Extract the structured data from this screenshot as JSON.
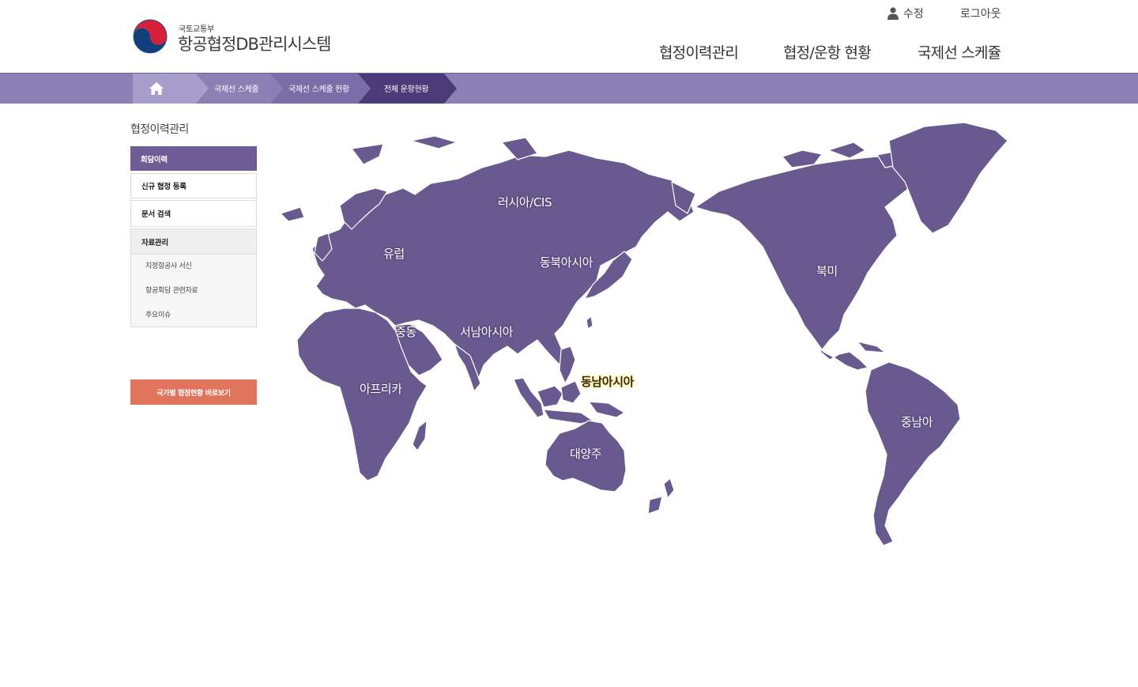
{
  "header": {
    "ministry": "국토교통부",
    "system_title": "항공협정DB관리시스템",
    "util": {
      "edit": "수정",
      "logout": "로그아웃"
    },
    "nav": [
      "협정이력관리",
      "협정/운항 현황",
      "국제선 스케쥴"
    ]
  },
  "breadcrumb": {
    "items": [
      "국제선 스케줄",
      "국제선 스케줄 현황",
      "전체 운항현황"
    ]
  },
  "sidebar": {
    "title": "협정이력관리",
    "items": [
      "회담이력",
      "신규 협정 등록",
      "문서 검색",
      "자료관리"
    ],
    "subitems": [
      "지정항공사 서신",
      "항공회담 관련자료",
      "주요이슈"
    ],
    "shortcut": "국가별 협정현황 바로보기"
  },
  "map": {
    "regions": [
      "러시아/CIS",
      "유럽",
      "동북아시아",
      "북미",
      "중동",
      "서남아시아",
      "동남아시아",
      "아프리카",
      "중남아",
      "대양주"
    ],
    "active_region": "동남아시아"
  },
  "colors": {
    "land": "#685a8f",
    "breadcrumb_bar": "#8b80b4",
    "active_menu": "#6f5c96",
    "shortcut_button": "#e0745c"
  },
  "icons": [
    "taeguk-logo",
    "user-icon",
    "home-icon"
  ]
}
